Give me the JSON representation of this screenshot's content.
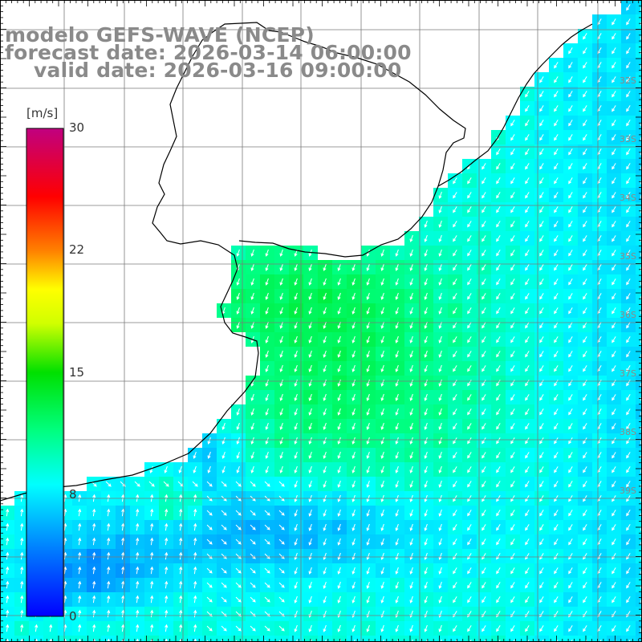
{
  "title": {
    "model": "modelo GEFS-WAVE (NCEP)",
    "forecast": "forecast date: 2026-03-14 06:00:00",
    "valid": "valid date: 2026-03-16 09:00:00"
  },
  "colorbar": {
    "unit": "[m/s]",
    "ticks": [
      "30",
      "22",
      "15",
      "8",
      "0"
    ],
    "tick_values": [
      30,
      22,
      15,
      8,
      0
    ],
    "range": [
      0,
      30
    ],
    "colors": [
      "#0000ff",
      "#00a0ff",
      "#00ffff",
      "#00ff00",
      "#ffff00",
      "#ff8000",
      "#ff0000",
      "#c00080"
    ]
  },
  "lat_labels": [
    "32S",
    "33S",
    "34S",
    "35S",
    "36S",
    "37S",
    "38S",
    "39S"
  ],
  "colors": {
    "land": "#ffffff",
    "coast": "#000000",
    "grid": "#7a7a7a",
    "arrow": "#ffffff",
    "title": "#8a8a8a"
  },
  "layers": {
    "wind_field": "10 m wind speed with direction arrows",
    "coastline": "coastline",
    "graticule": "lat/lon grid"
  }
}
